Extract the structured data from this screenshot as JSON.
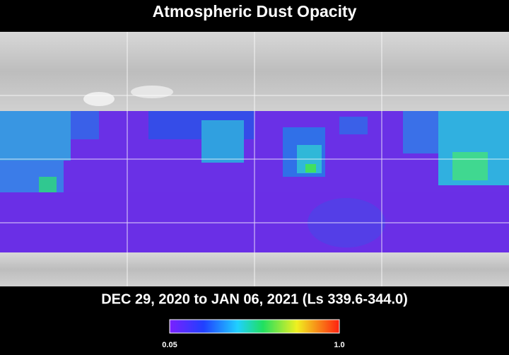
{
  "title": "Atmospheric Dust Opacity",
  "date_range": "DEC 29, 2020 to JAN 06, 2021 (Ls 339.6-344.0)",
  "colorbar": {
    "ticks": [
      0.05,
      {
        "value": 1,
        "label": "1.0"
      }
    ]
  }
}
